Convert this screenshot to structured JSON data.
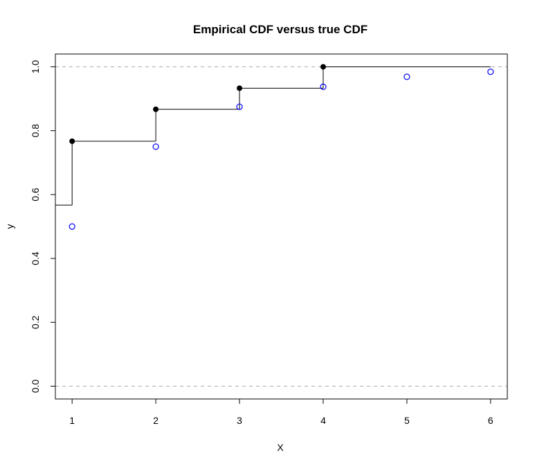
{
  "chart_data": {
    "type": "line",
    "title": "Empirical CDF versus true CDF",
    "xlabel": "X",
    "ylabel": "y",
    "xlim": [
      0.8,
      6.2
    ],
    "ylim": [
      -0.04,
      1.04
    ],
    "x_ticks": [
      "1",
      "2",
      "3",
      "4",
      "5",
      "6"
    ],
    "y_ticks": [
      "0.0",
      "0.2",
      "0.4",
      "0.6",
      "0.8",
      "1.0"
    ],
    "reference_lines": [
      0,
      1
    ],
    "series": [
      {
        "style": "step",
        "color": "#000000",
        "left_level": 0.567,
        "x": [
          1,
          2,
          3,
          4
        ],
        "y": [
          0.767,
          0.867,
          0.933,
          1.0
        ],
        "right_end": 6
      },
      {
        "style": "points",
        "color": "#0000ff",
        "x": [
          1,
          2,
          3,
          4,
          5,
          6
        ],
        "y": [
          0.5,
          0.75,
          0.875,
          0.9375,
          0.96875,
          0.984375
        ]
      }
    ]
  }
}
